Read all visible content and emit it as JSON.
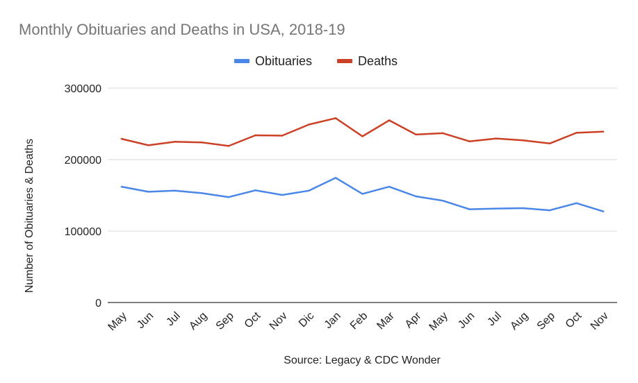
{
  "chart_data": {
    "type": "line",
    "title": "Monthly Obituaries and Deaths in USA, 2018-19",
    "ylabel": "Number of Obituaries & Deaths",
    "xlabel": "Source: Legacy & CDC Wonder",
    "categories": [
      "May",
      "Jun",
      "Jul",
      "Aug",
      "Sep",
      "Oct",
      "Nov",
      "Dic",
      "Jan",
      "Feb",
      "Mar",
      "Apr",
      "May",
      "Jun",
      "Jul",
      "Aug",
      "Sep",
      "Oct",
      "Nov"
    ],
    "series": [
      {
        "name": "Obituaries",
        "color": "#4a86e8",
        "values": [
          162000,
          155000,
          156500,
          153000,
          147500,
          157000,
          150500,
          156500,
          174500,
          152000,
          162000,
          148500,
          142500,
          130500,
          131500,
          132000,
          129000,
          139000,
          127500
        ]
      },
      {
        "name": "Deaths",
        "color": "#cc4125",
        "values": [
          229000,
          220000,
          225000,
          224000,
          219000,
          234000,
          233500,
          249000,
          258000,
          232500,
          255000,
          235000,
          237000,
          225500,
          229500,
          227000,
          222500,
          237500,
          239000
        ]
      }
    ],
    "yticks": [
      0,
      100000,
      200000,
      300000
    ],
    "ylim": [
      0,
      300000
    ],
    "grid": true,
    "legend_position": "top-center"
  }
}
